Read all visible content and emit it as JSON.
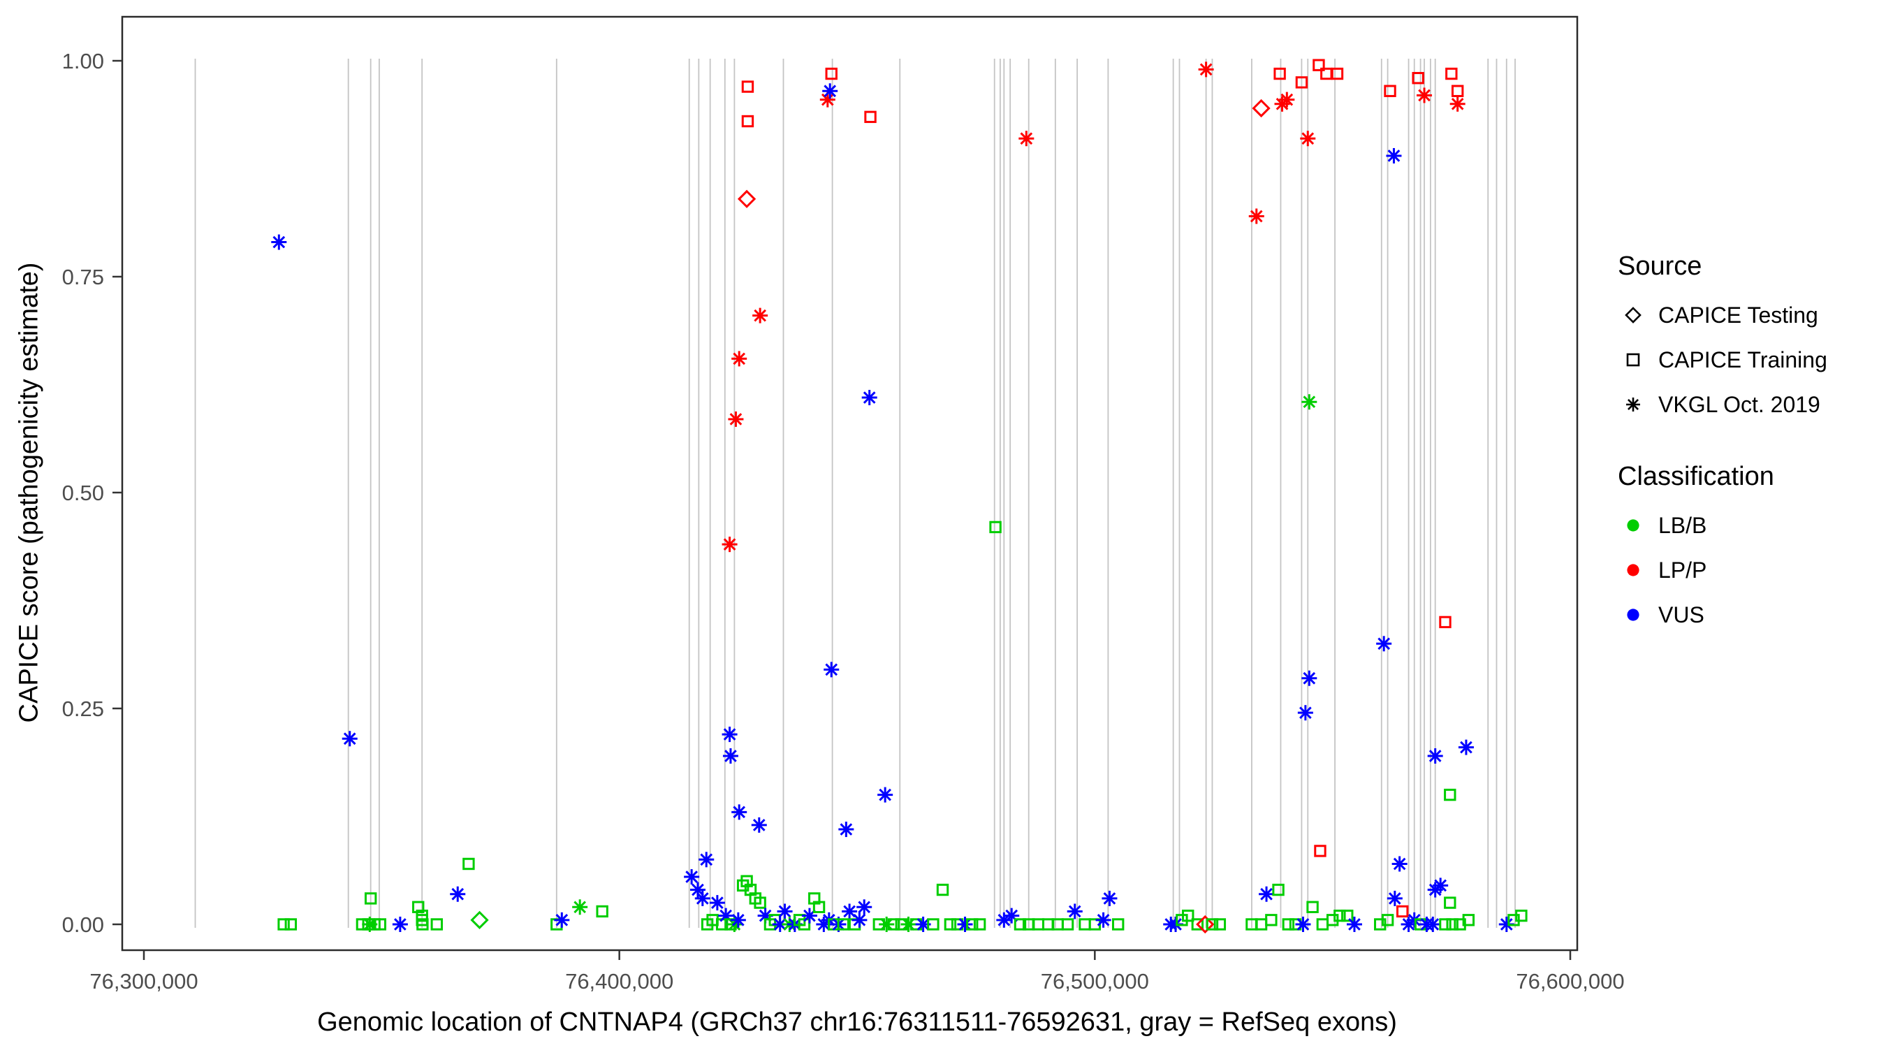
{
  "figure": {
    "y_axis": {
      "label": "CAPICE score (pathogenicity estimate)",
      "ticks": [
        {
          "value": 0.0,
          "label": "0.00"
        },
        {
          "value": 0.25,
          "label": "0.25"
        },
        {
          "value": 0.5,
          "label": "0.50"
        },
        {
          "value": 0.75,
          "label": "0.75"
        },
        {
          "value": 1.0,
          "label": "1.00"
        }
      ]
    },
    "x_axis": {
      "label": "Genomic location of CNTNAP4 (GRCh37 chr16:76311511-76592631, gray = RefSeq exons)",
      "ticks": [
        {
          "value": 76300000,
          "label": "76,300,000"
        },
        {
          "value": 76400000,
          "label": "76,400,000"
        },
        {
          "value": 76500000,
          "label": "76,500,000"
        },
        {
          "value": 76600000,
          "label": "76,600,000"
        }
      ]
    },
    "legend": {
      "source": {
        "title": "Source",
        "items": [
          {
            "shape": "diamond",
            "label": "CAPICE Testing"
          },
          {
            "shape": "square",
            "label": "CAPICE Training"
          },
          {
            "shape": "asterisk",
            "label": "VKGL Oct. 2019"
          }
        ]
      },
      "classification": {
        "title": "Classification",
        "items": [
          {
            "color": "#00CD00",
            "label": "LB/B"
          },
          {
            "color": "#FF0000",
            "label": "LP/P"
          },
          {
            "color": "#0000FF",
            "label": "VUS"
          }
        ]
      }
    }
  },
  "chart_data": {
    "type": "scatter",
    "xlabel": "Genomic location of CNTNAP4 (GRCh37 chr16:76311511-76592631, gray = RefSeq exons)",
    "ylabel": "CAPICE score (pathogenicity estimate)",
    "xlim": [
      76290000,
      76605000
    ],
    "ylim": [
      0,
      1.0
    ],
    "grid": false,
    "legend_position": "right",
    "exon_line_color": "#c4c4c4",
    "classes": {
      "LB": {
        "label": "LB/B",
        "color": "#00CD00"
      },
      "LP": {
        "label": "LP/P",
        "color": "#FF0000"
      },
      "VUS": {
        "label": "VUS",
        "color": "#0000FF"
      }
    },
    "sources": {
      "testing": {
        "label": "CAPICE Testing",
        "shape": "diamond"
      },
      "training": {
        "label": "CAPICE Training",
        "shape": "square"
      },
      "vkgl": {
        "label": "VKGL Oct. 2019",
        "shape": "asterisk"
      }
    },
    "exon_lines": [
      76310800,
      76343000,
      76347700,
      76349500,
      76358500,
      76386800,
      76414700,
      76416700,
      76419100,
      76422200,
      76424200,
      76434500,
      76444800,
      76459000,
      76478900,
      76480100,
      76480900,
      76482200,
      76486100,
      76491700,
      76496300,
      76502800,
      76516500,
      76517800,
      76523400,
      76524700,
      76533000,
      76539100,
      76543500,
      76544800,
      76550500,
      76560300,
      76561600,
      76566000,
      76567200,
      76568500,
      76569300,
      76570600,
      76571600,
      76582700,
      76584500,
      76586600,
      76588400
    ],
    "points_format": [
      "x",
      "y",
      "source",
      "class"
    ],
    "points": [
      [
        76328400,
        0.79,
        "vkgl",
        "VUS"
      ],
      [
        76343300,
        0.215,
        "vkgl",
        "VUS"
      ],
      [
        76329400,
        0,
        "training",
        "LB"
      ],
      [
        76330900,
        0,
        "training",
        "LB"
      ],
      [
        76345900,
        0,
        "training",
        "LB"
      ],
      [
        76347200,
        0,
        "training",
        "LB"
      ],
      [
        76347700,
        0.03,
        "training",
        "LB"
      ],
      [
        76348500,
        0,
        "training",
        "LB"
      ],
      [
        76349700,
        0,
        "training",
        "LB"
      ],
      [
        76347500,
        0,
        "vkgl",
        "LB"
      ],
      [
        76353900,
        0,
        "vkgl",
        "VUS"
      ],
      [
        76357700,
        0.02,
        "training",
        "LB"
      ],
      [
        76358500,
        0.01,
        "training",
        "LB"
      ],
      [
        76358500,
        0.005,
        "training",
        "LB"
      ],
      [
        76358600,
        0,
        "training",
        "LB"
      ],
      [
        76361600,
        0,
        "training",
        "LB"
      ],
      [
        76366000,
        0.035,
        "vkgl",
        "VUS"
      ],
      [
        76368300,
        0.07,
        "training",
        "LB"
      ],
      [
        76370600,
        0.005,
        "testing",
        "LB"
      ],
      [
        76386800,
        0,
        "training",
        "LB"
      ],
      [
        76387900,
        0.005,
        "vkgl",
        "VUS"
      ],
      [
        76391700,
        0.02,
        "vkgl",
        "LB"
      ],
      [
        76396400,
        0.015,
        "training",
        "LB"
      ],
      [
        76415200,
        0.055,
        "vkgl",
        "VUS"
      ],
      [
        76416500,
        0.04,
        "vkgl",
        "VUS"
      ],
      [
        76417500,
        0.03,
        "vkgl",
        "VUS"
      ],
      [
        76418300,
        0.075,
        "vkgl",
        "VUS"
      ],
      [
        76418500,
        0,
        "training",
        "LB"
      ],
      [
        76419600,
        0.005,
        "training",
        "LB"
      ],
      [
        76420600,
        0.025,
        "vkgl",
        "VUS"
      ],
      [
        76421600,
        0,
        "training",
        "LB"
      ],
      [
        76422400,
        0.01,
        "vkgl",
        "VUS"
      ],
      [
        76423200,
        0.44,
        "vkgl",
        "LP"
      ],
      [
        76423200,
        0.22,
        "vkgl",
        "VUS"
      ],
      [
        76423400,
        0.195,
        "vkgl",
        "VUS"
      ],
      [
        76423400,
        0,
        "training",
        "LB"
      ],
      [
        76424200,
        0,
        "vkgl",
        "LB"
      ],
      [
        76424500,
        0.585,
        "vkgl",
        "LP"
      ],
      [
        76425000,
        0.005,
        "vkgl",
        "VUS"
      ],
      [
        76425200,
        0.655,
        "vkgl",
        "LP"
      ],
      [
        76425200,
        0.13,
        "vkgl",
        "VUS"
      ],
      [
        76426000,
        0.045,
        "training",
        "LB"
      ],
      [
        76426800,
        0.84,
        "testing",
        "LP"
      ],
      [
        76426800,
        0.05,
        "training",
        "LB"
      ],
      [
        76427000,
        0.97,
        "training",
        "LP"
      ],
      [
        76427000,
        0.93,
        "training",
        "LP"
      ],
      [
        76427600,
        0.04,
        "training",
        "LB"
      ],
      [
        76428600,
        0.03,
        "training",
        "LB"
      ],
      [
        76429400,
        0.115,
        "vkgl",
        "VUS"
      ],
      [
        76429600,
        0.705,
        "vkgl",
        "LP"
      ],
      [
        76429600,
        0.025,
        "training",
        "LB"
      ],
      [
        76430700,
        0.01,
        "vkgl",
        "VUS"
      ],
      [
        76431700,
        0,
        "training",
        "LB"
      ],
      [
        76432700,
        0.005,
        "training",
        "LB"
      ],
      [
        76433800,
        0,
        "vkgl",
        "VUS"
      ],
      [
        76434800,
        0.015,
        "vkgl",
        "VUS"
      ],
      [
        76435800,
        0,
        "vkgl",
        "LB"
      ],
      [
        76436900,
        0,
        "vkgl",
        "VUS"
      ],
      [
        76437900,
        0.005,
        "training",
        "LB"
      ],
      [
        76438900,
        0,
        "training",
        "LB"
      ],
      [
        76440000,
        0.01,
        "vkgl",
        "VUS"
      ],
      [
        76441000,
        0.03,
        "training",
        "LB"
      ],
      [
        76442000,
        0.02,
        "training",
        "LB"
      ],
      [
        76443000,
        0,
        "vkgl",
        "VUS"
      ],
      [
        76443800,
        0.955,
        "vkgl",
        "LP"
      ],
      [
        76444100,
        0.005,
        "vkgl",
        "VUS"
      ],
      [
        76444300,
        0.965,
        "vkgl",
        "VUS"
      ],
      [
        76444600,
        0.985,
        "training",
        "LP"
      ],
      [
        76444600,
        0.295,
        "vkgl",
        "VUS"
      ],
      [
        76445100,
        0,
        "training",
        "LB"
      ],
      [
        76446100,
        0,
        "vkgl",
        "VUS"
      ],
      [
        76447100,
        0,
        "training",
        "LB"
      ],
      [
        76447700,
        0.11,
        "vkgl",
        "VUS"
      ],
      [
        76448400,
        0.015,
        "vkgl",
        "VUS"
      ],
      [
        76449500,
        0,
        "training",
        "LB"
      ],
      [
        76450500,
        0.005,
        "vkgl",
        "VUS"
      ],
      [
        76451500,
        0.02,
        "vkgl",
        "VUS"
      ],
      [
        76452600,
        0.61,
        "vkgl",
        "VUS"
      ],
      [
        76452800,
        0.935,
        "training",
        "LP"
      ],
      [
        76454600,
        0,
        "training",
        "LB"
      ],
      [
        76455900,
        0.15,
        "vkgl",
        "VUS"
      ],
      [
        76456200,
        0,
        "vkgl",
        "LB"
      ],
      [
        76457700,
        0,
        "training",
        "LB"
      ],
      [
        76459300,
        0,
        "training",
        "LB"
      ],
      [
        76460800,
        0,
        "vkgl",
        "LB"
      ],
      [
        76462400,
        0,
        "training",
        "LB"
      ],
      [
        76463900,
        0,
        "vkgl",
        "VUS"
      ],
      [
        76466000,
        0,
        "training",
        "LB"
      ],
      [
        76468000,
        0.04,
        "training",
        "LB"
      ],
      [
        76469600,
        0,
        "training",
        "LB"
      ],
      [
        76471100,
        0,
        "training",
        "LB"
      ],
      [
        76472700,
        0,
        "vkgl",
        "VUS"
      ],
      [
        76474200,
        0,
        "training",
        "LB"
      ],
      [
        76475800,
        0,
        "training",
        "LB"
      ],
      [
        76479100,
        0.46,
        "training",
        "LB"
      ],
      [
        76480900,
        0.005,
        "vkgl",
        "VUS"
      ],
      [
        76482500,
        0.01,
        "vkgl",
        "VUS"
      ],
      [
        76484300,
        0,
        "training",
        "LB"
      ],
      [
        76485600,
        0.91,
        "vkgl",
        "LP"
      ],
      [
        76486100,
        0,
        "training",
        "LB"
      ],
      [
        76488100,
        0,
        "training",
        "LB"
      ],
      [
        76490200,
        0,
        "training",
        "LB"
      ],
      [
        76492200,
        0,
        "training",
        "LB"
      ],
      [
        76494300,
        0,
        "training",
        "LB"
      ],
      [
        76495800,
        0.015,
        "vkgl",
        "VUS"
      ],
      [
        76497900,
        0,
        "training",
        "LB"
      ],
      [
        76500000,
        0,
        "training",
        "LB"
      ],
      [
        76501800,
        0.005,
        "vkgl",
        "VUS"
      ],
      [
        76503100,
        0.03,
        "vkgl",
        "VUS"
      ],
      [
        76504900,
        0,
        "training",
        "LB"
      ],
      [
        76516000,
        0,
        "vkgl",
        "VUS"
      ],
      [
        76517000,
        0,
        "vkgl",
        "VUS"
      ],
      [
        76518300,
        0.005,
        "training",
        "LB"
      ],
      [
        76519600,
        0.01,
        "training",
        "LB"
      ],
      [
        76521600,
        0,
        "training",
        "LB"
      ],
      [
        76523200,
        0,
        "testing",
        "LP"
      ],
      [
        76523400,
        0.99,
        "vkgl",
        "LP"
      ],
      [
        76524700,
        0,
        "training",
        "LB"
      ],
      [
        76526300,
        0,
        "training",
        "LB"
      ],
      [
        76533000,
        0,
        "training",
        "LB"
      ],
      [
        76534000,
        0.82,
        "vkgl",
        "LP"
      ],
      [
        76535000,
        0.945,
        "testing",
        "LP"
      ],
      [
        76535000,
        0,
        "training",
        "LB"
      ],
      [
        76536100,
        0.035,
        "vkgl",
        "VUS"
      ],
      [
        76537100,
        0.005,
        "training",
        "LB"
      ],
      [
        76538600,
        0.04,
        "training",
        "LB"
      ],
      [
        76538900,
        0.985,
        "training",
        "LP"
      ],
      [
        76539400,
        0.95,
        "vkgl",
        "LP"
      ],
      [
        76540400,
        0.955,
        "vkgl",
        "LP"
      ],
      [
        76540700,
        0,
        "training",
        "LB"
      ],
      [
        76542200,
        0,
        "training",
        "LB"
      ],
      [
        76543500,
        0.975,
        "training",
        "LP"
      ],
      [
        76543800,
        0,
        "vkgl",
        "VUS"
      ],
      [
        76544300,
        0.245,
        "vkgl",
        "VUS"
      ],
      [
        76544800,
        0.91,
        "vkgl",
        "LP"
      ],
      [
        76545100,
        0.605,
        "vkgl",
        "LB"
      ],
      [
        76545100,
        0.285,
        "vkgl",
        "VUS"
      ],
      [
        76545800,
        0.02,
        "training",
        "LB"
      ],
      [
        76547100,
        0.995,
        "training",
        "LP"
      ],
      [
        76547400,
        0.085,
        "training",
        "LP"
      ],
      [
        76547900,
        0,
        "training",
        "LB"
      ],
      [
        76548700,
        0.985,
        "training",
        "LP"
      ],
      [
        76550000,
        0.005,
        "training",
        "LB"
      ],
      [
        76551000,
        0.985,
        "training",
        "LP"
      ],
      [
        76551500,
        0.01,
        "training",
        "LB"
      ],
      [
        76553100,
        0.01,
        "training",
        "LB"
      ],
      [
        76554600,
        0,
        "vkgl",
        "VUS"
      ],
      [
        76560000,
        0,
        "training",
        "LB"
      ],
      [
        76560800,
        0.325,
        "vkgl",
        "VUS"
      ],
      [
        76561600,
        0.005,
        "training",
        "LB"
      ],
      [
        76562100,
        0.965,
        "training",
        "LP"
      ],
      [
        76562900,
        0.89,
        "vkgl",
        "VUS"
      ],
      [
        76563100,
        0.03,
        "vkgl",
        "VUS"
      ],
      [
        76564100,
        0.07,
        "vkgl",
        "VUS"
      ],
      [
        76564700,
        0.015,
        "training",
        "LP"
      ],
      [
        76566000,
        0,
        "vkgl",
        "VUS"
      ],
      [
        76567200,
        0.005,
        "vkgl",
        "VUS"
      ],
      [
        76568000,
        0.98,
        "training",
        "LP"
      ],
      [
        76568500,
        0,
        "training",
        "LB"
      ],
      [
        76569300,
        0.96,
        "vkgl",
        "LP"
      ],
      [
        76569800,
        0,
        "vkgl",
        "VUS"
      ],
      [
        76571100,
        0,
        "vkgl",
        "VUS"
      ],
      [
        76571600,
        0.195,
        "vkgl",
        "VUS"
      ],
      [
        76571600,
        0.04,
        "vkgl",
        "VUS"
      ],
      [
        76572700,
        0.045,
        "vkgl",
        "VUS"
      ],
      [
        76573700,
        0.35,
        "training",
        "LP"
      ],
      [
        76573700,
        0,
        "training",
        "LB"
      ],
      [
        76574700,
        0.15,
        "training",
        "LB"
      ],
      [
        76574700,
        0.025,
        "training",
        "LB"
      ],
      [
        76575000,
        0.985,
        "training",
        "LP"
      ],
      [
        76575200,
        0,
        "training",
        "LB"
      ],
      [
        76576300,
        0.965,
        "training",
        "LP"
      ],
      [
        76576300,
        0.95,
        "vkgl",
        "LP"
      ],
      [
        76576800,
        0,
        "training",
        "LB"
      ],
      [
        76578100,
        0.205,
        "vkgl",
        "VUS"
      ],
      [
        76578600,
        0.005,
        "training",
        "LB"
      ],
      [
        76586600,
        0,
        "vkgl",
        "VUS"
      ],
      [
        76588100,
        0.005,
        "training",
        "LB"
      ],
      [
        76589700,
        0.01,
        "training",
        "LB"
      ]
    ]
  }
}
